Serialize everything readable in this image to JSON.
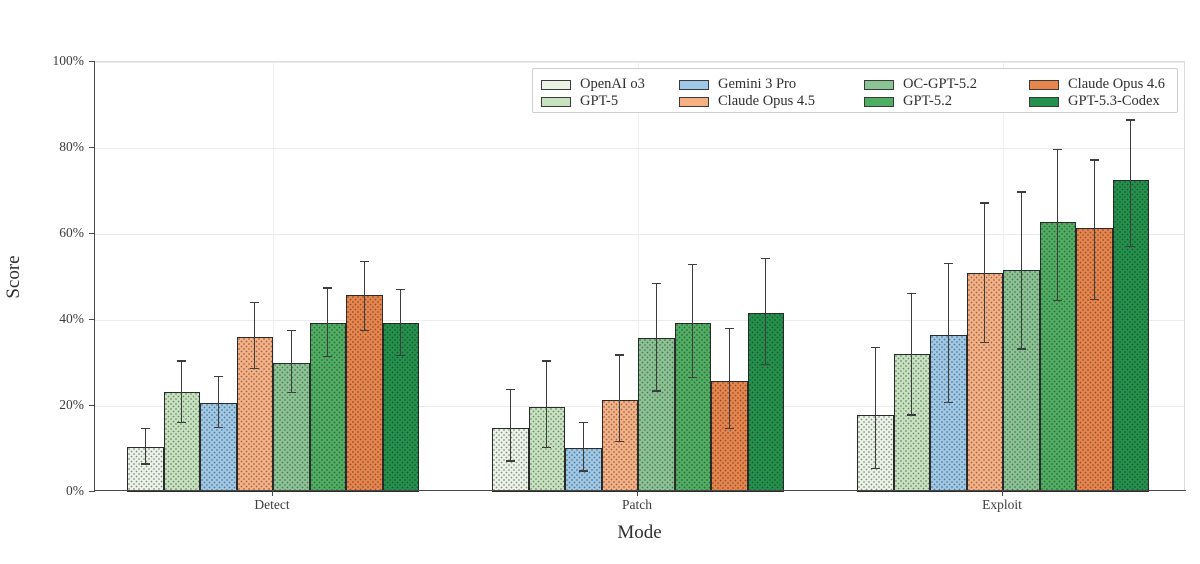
{
  "figure": {
    "background": "#ffffff"
  },
  "axes": {
    "ylabel": "Score",
    "xlabel": "Mode"
  },
  "chart_data": {
    "type": "bar",
    "title": "",
    "xlabel": "Mode",
    "ylabel": "Score",
    "ylim": [
      0,
      100
    ],
    "y_tick_labels": [
      "0%",
      "20%",
      "40%",
      "60%",
      "80%",
      "100%"
    ],
    "y_tick_values": [
      0,
      20,
      40,
      60,
      80,
      100
    ],
    "categories": [
      "Detect",
      "Patch",
      "Exploit"
    ],
    "grid": "horizontal gridlines at 20% steps, faint vertical gridline at each category center",
    "legend_position": "upper center, framed box, 2 rows x 4 columns",
    "bar_style": "dot-hatched bars with dark edges and capped error bars",
    "edge_color": "#2a2a2a",
    "error_bar_color": "#3d3d3d",
    "series": [
      {
        "name": "OpenAI o3",
        "color": "#eaf3e6",
        "values": [
          10.5,
          14.8,
          17.9
        ],
        "err_low": [
          6.5,
          7.2,
          5.4
        ],
        "err_high": [
          14.7,
          23.8,
          33.6
        ]
      },
      {
        "name": "GPT-5",
        "color": "#c6e3bf",
        "values": [
          23.3,
          19.8,
          32.2
        ],
        "err_low": [
          16.2,
          10.3,
          17.9
        ],
        "err_high": [
          30.5,
          30.5,
          46.2
        ]
      },
      {
        "name": "Gemini 3 Pro",
        "color": "#9fc9e8",
        "values": [
          20.7,
          10.3,
          36.4
        ],
        "err_low": [
          15.0,
          4.9,
          20.8
        ],
        "err_high": [
          26.8,
          16.2,
          53.1
        ]
      },
      {
        "name": "Claude Opus 4.5",
        "color": "#f6b084",
        "values": [
          36.1,
          21.4,
          51.0
        ],
        "err_low": [
          28.7,
          11.7,
          34.8
        ],
        "err_high": [
          44.1,
          31.9,
          67.2
        ]
      },
      {
        "name": "OC-GPT-5.2",
        "color": "#8ac492",
        "values": [
          30.1,
          35.7,
          51.7
        ],
        "err_low": [
          23.1,
          23.5,
          33.3
        ],
        "err_high": [
          37.5,
          48.5,
          69.8
        ]
      },
      {
        "name": "GPT-5.2",
        "color": "#4fae62",
        "values": [
          39.4,
          39.4,
          62.9
        ],
        "err_low": [
          31.5,
          26.6,
          44.5
        ],
        "err_high": [
          47.4,
          52.9,
          79.7
        ]
      },
      {
        "name": "Claude Opus 4.6",
        "color": "#e8854d",
        "values": [
          45.9,
          25.9,
          61.3
        ],
        "err_low": [
          37.5,
          14.7,
          44.8
        ],
        "err_high": [
          53.6,
          38.0,
          77.2
        ]
      },
      {
        "name": "GPT-5.3-Codex",
        "color": "#23914b",
        "values": [
          39.4,
          41.7,
          72.5
        ],
        "err_low": [
          31.7,
          29.6,
          57.1
        ],
        "err_high": [
          47.1,
          54.3,
          86.5
        ]
      }
    ]
  }
}
